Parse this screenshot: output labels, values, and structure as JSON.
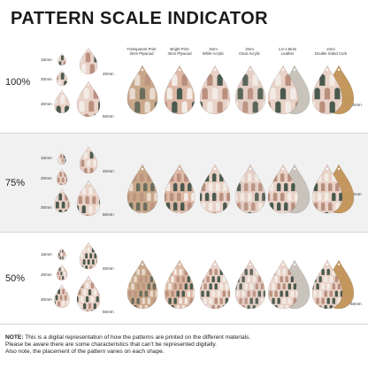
{
  "title": "PATTERN SCALE INDICATOR",
  "columns": [
    {
      "line1": "Transparent Print",
      "line2": "3mm Plywood"
    },
    {
      "line1": "Bright Print",
      "line2": "3mm Plywood"
    },
    {
      "line1": "3mm",
      "line2": "White Acrylic"
    },
    {
      "line1": "3mm",
      "line2": "Clear Acrylic"
    },
    {
      "line1": "1.6-1.8mm",
      "line2": "Leather"
    },
    {
      "line1": "2mm",
      "line2": "Double Sided Cork"
    }
  ],
  "sections": [
    {
      "scale": "100%",
      "sizes": [
        "15mm",
        "20mm",
        "30mm",
        "40mm",
        "50mm"
      ],
      "side_size": "60mm"
    },
    {
      "scale": "75%",
      "sizes": [
        "15mm",
        "20mm",
        "30mm",
        "40mm",
        "50mm"
      ],
      "side_size": "60mm"
    },
    {
      "scale": "50%",
      "sizes": [
        "15mm",
        "20mm",
        "30mm",
        "40mm",
        "50mm"
      ],
      "side_size": "60mm"
    }
  ],
  "note": {
    "label": "NOTE:",
    "line1": "This is a digital representation of how the patterns are printed on the different materials.",
    "line2": "Please be aware there are some characteristics that can't be represented digitally.",
    "line3": "Also note, the placement of the pattern varies on each shape."
  },
  "colors": {
    "plywood": "#c9a88a",
    "plywood_print": "#ddb9a6",
    "acrylic_white": "#e9d2c8",
    "acrylic_clear": "#e4cfc6",
    "leather": "#c8c4bc",
    "cork": "#c4975e",
    "arch_dark": "#4b5a4e",
    "arch_light": "#f3ece6"
  }
}
